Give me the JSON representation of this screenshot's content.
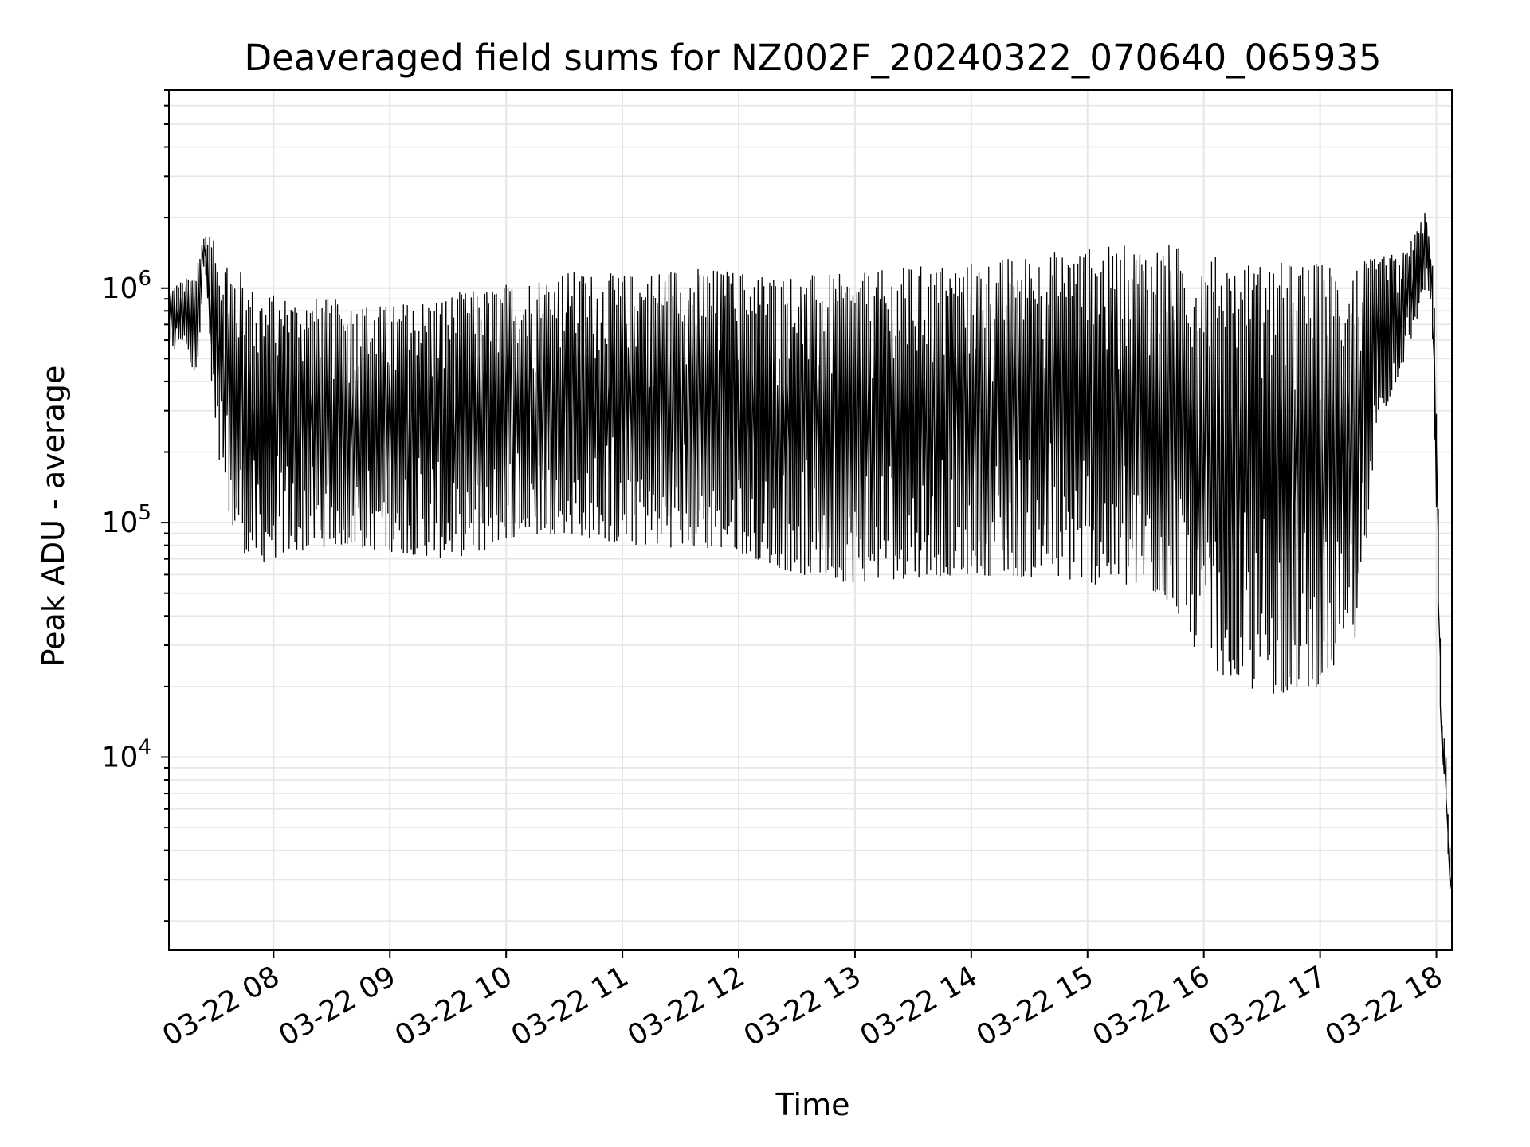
{
  "chart_data": {
    "type": "line",
    "title": "Deaveraged field sums for NZ002F_20240322_070640_065935",
    "xlabel": "Time",
    "ylabel": "Peak ADU - average",
    "x_type": "datetime",
    "x_range": [
      "2024-03-22 07:06",
      "2024-03-22 18:08"
    ],
    "xticks": [
      {
        "value": "2024-03-22 08:00",
        "label": "03-22 08"
      },
      {
        "value": "2024-03-22 09:00",
        "label": "03-22 09"
      },
      {
        "value": "2024-03-22 10:00",
        "label": "03-22 10"
      },
      {
        "value": "2024-03-22 11:00",
        "label": "03-22 11"
      },
      {
        "value": "2024-03-22 12:00",
        "label": "03-22 12"
      },
      {
        "value": "2024-03-22 13:00",
        "label": "03-22 13"
      },
      {
        "value": "2024-03-22 14:00",
        "label": "03-22 14"
      },
      {
        "value": "2024-03-22 15:00",
        "label": "03-22 15"
      },
      {
        "value": "2024-03-22 16:00",
        "label": "03-22 16"
      },
      {
        "value": "2024-03-22 17:00",
        "label": "03-22 17"
      },
      {
        "value": "2024-03-22 18:00",
        "label": "03-22 18"
      }
    ],
    "y_scale": "log",
    "ylim": [
      1500,
      7000000
    ],
    "yticks": [
      {
        "value": 10000,
        "base": "10",
        "exp": "4"
      },
      {
        "value": 100000,
        "base": "10",
        "exp": "5"
      },
      {
        "value": 1000000,
        "base": "10",
        "exp": "6"
      }
    ],
    "grid": true,
    "line_color": "#000000",
    "series": [
      {
        "x": [
          "2024-03-22 07:06",
          "2024-03-22 07:15",
          "2024-03-22 07:20",
          "2024-03-22 07:25",
          "2024-03-22 07:30",
          "2024-03-22 07:40",
          "2024-03-22 07:50",
          "2024-03-22 08:00",
          "2024-03-22 08:30",
          "2024-03-22 09:00",
          "2024-03-22 09:30",
          "2024-03-22 09:50",
          "2024-03-22 10:00",
          "2024-03-22 10:30",
          "2024-03-22 11:00",
          "2024-03-22 11:30",
          "2024-03-22 12:00",
          "2024-03-22 12:30",
          "2024-03-22 13:00",
          "2024-03-22 13:30",
          "2024-03-22 14:00",
          "2024-03-22 14:30",
          "2024-03-22 15:00",
          "2024-03-22 15:30",
          "2024-03-22 15:45",
          "2024-03-22 16:00",
          "2024-03-22 16:30",
          "2024-03-22 17:00",
          "2024-03-22 17:20",
          "2024-03-22 17:30",
          "2024-03-22 17:45",
          "2024-03-22 17:55",
          "2024-03-22 17:58",
          "2024-03-22 18:00",
          "2024-03-22 18:03",
          "2024-03-22 18:05",
          "2024-03-22 18:08"
        ],
        "upper": [
          1000000,
          1100000,
          1200000,
          1800000,
          1600000,
          1300000,
          1000000,
          950000,
          900000,
          850000,
          950000,
          1000000,
          1050000,
          1200000,
          1150000,
          1250000,
          1200000,
          1150000,
          1150000,
          1250000,
          1300000,
          1400000,
          1500000,
          1550000,
          1550000,
          1400000,
          1300000,
          1300000,
          1300000,
          1350000,
          1450000,
          2200000,
          1400000,
          700000,
          15000,
          12000,
          3500
        ],
        "lower": [
          500000,
          600000,
          400000,
          1300000,
          200000,
          90000,
          65000,
          70000,
          80000,
          75000,
          70000,
          75000,
          85000,
          90000,
          80000,
          78000,
          75000,
          60000,
          55000,
          58000,
          60000,
          58000,
          55000,
          50000,
          45000,
          25000,
          18000,
          20000,
          30000,
          250000,
          500000,
          1000000,
          800000,
          120000,
          11000,
          6500,
          2200
        ]
      }
    ]
  }
}
